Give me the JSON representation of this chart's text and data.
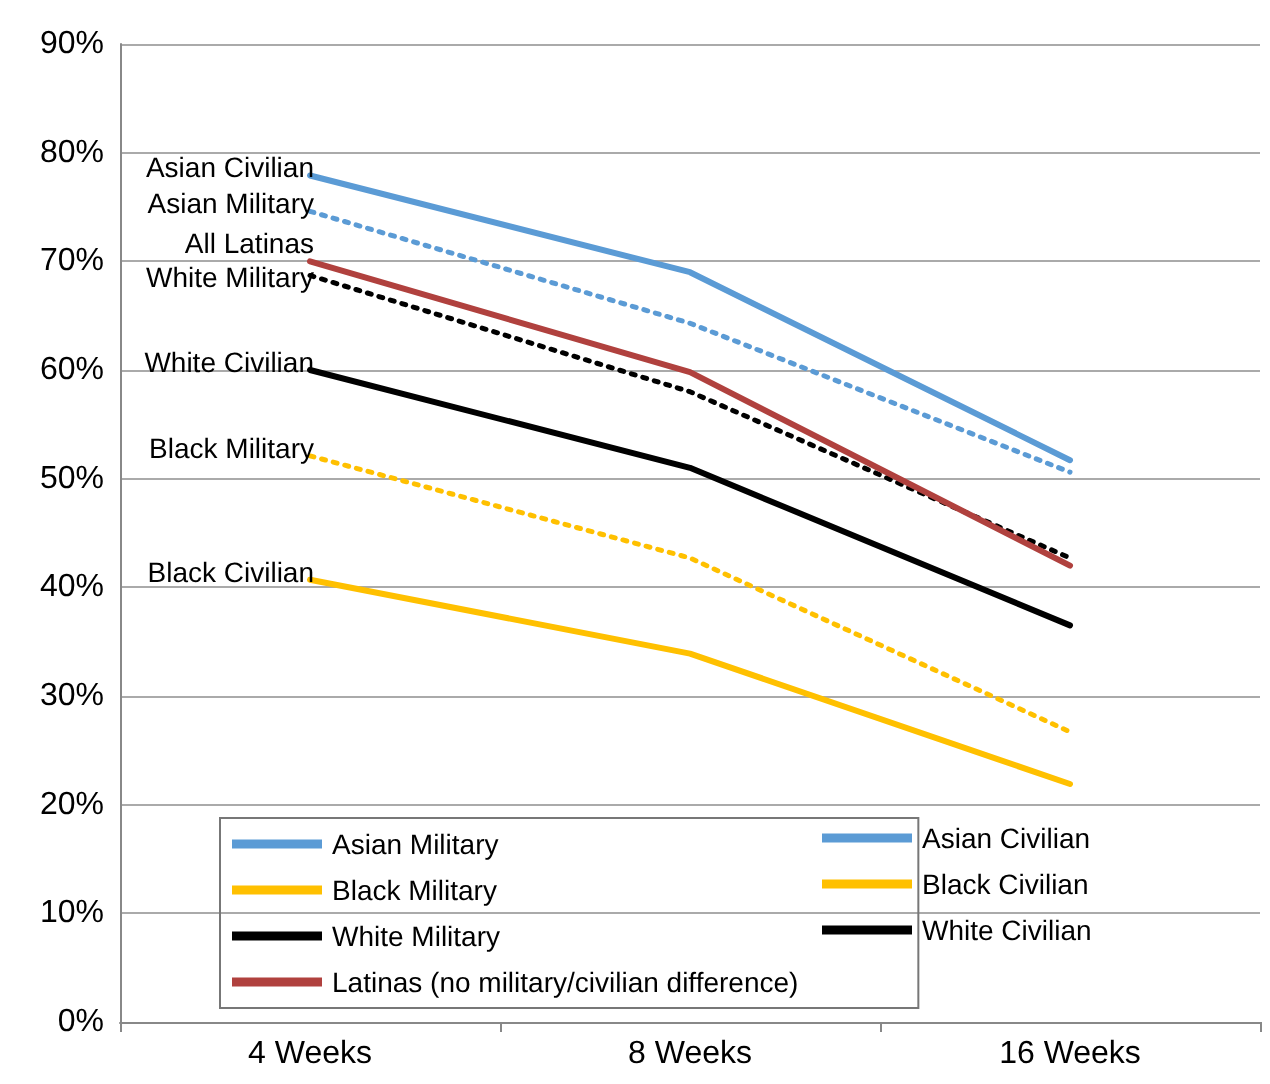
{
  "chart_data": {
    "type": "line",
    "categories": [
      "4 Weeks",
      "8 Weeks",
      "16 Weeks"
    ],
    "series": [
      {
        "name": "Asian Military",
        "color": "#5b9bd5",
        "line_style": "dotted",
        "values": [
          74.6,
          64.3,
          50.6
        ]
      },
      {
        "name": "Asian Civilian",
        "color": "#5b9bd5",
        "line_style": "solid",
        "values": [
          77.9,
          69,
          51.7
        ]
      },
      {
        "name": "Black Military",
        "color": "#ffc000",
        "line_style": "dotted",
        "values": [
          52.1,
          42.7,
          26.7
        ]
      },
      {
        "name": "Black Civilian",
        "color": "#ffc000",
        "line_style": "solid",
        "values": [
          40.7,
          33.9,
          21.9
        ]
      },
      {
        "name": "White Military",
        "color": "#000000",
        "line_style": "dotted",
        "values": [
          68.7,
          58,
          42.7
        ]
      },
      {
        "name": "White Civilian",
        "color": "#000000",
        "line_style": "solid",
        "values": [
          60,
          51,
          36.5
        ]
      },
      {
        "name": "Latinas (no military/civilian difference)",
        "color": "#b0413e",
        "line_style": "solid",
        "values": [
          70,
          59.8,
          42
        ]
      }
    ],
    "ylim": [
      0,
      90
    ],
    "yticks": [
      {
        "value": 0,
        "label": "0%"
      },
      {
        "value": 10,
        "label": "10%"
      },
      {
        "value": 20,
        "label": "20%"
      },
      {
        "value": 30,
        "label": "30%"
      },
      {
        "value": 40,
        "label": "40%"
      },
      {
        "value": 50,
        "label": "50%"
      },
      {
        "value": 60,
        "label": "60%"
      },
      {
        "value": 70,
        "label": "70%"
      },
      {
        "value": 80,
        "label": "80%"
      },
      {
        "value": 90,
        "label": "90%"
      }
    ],
    "grid": "y",
    "legend": "bottom",
    "marker": "none",
    "annotations": [
      {
        "text": "Asian Civilian",
        "x": "4 Weeks",
        "y": 77.9
      },
      {
        "text": "Asian Military",
        "x": "4 Weeks",
        "y": 74.6
      },
      {
        "text": "All Latinas",
        "x": "4 Weeks",
        "y": 70
      },
      {
        "text": "White Military",
        "x": "4 Weeks",
        "y": 68.7
      },
      {
        "text": "White Civilian",
        "x": "4 Weeks",
        "y": 60
      },
      {
        "text": "Black Military",
        "x": "4 Weeks",
        "y": 52.1
      },
      {
        "text": "Black Civilian",
        "x": "4 Weeks",
        "y": 40.7
      }
    ]
  }
}
